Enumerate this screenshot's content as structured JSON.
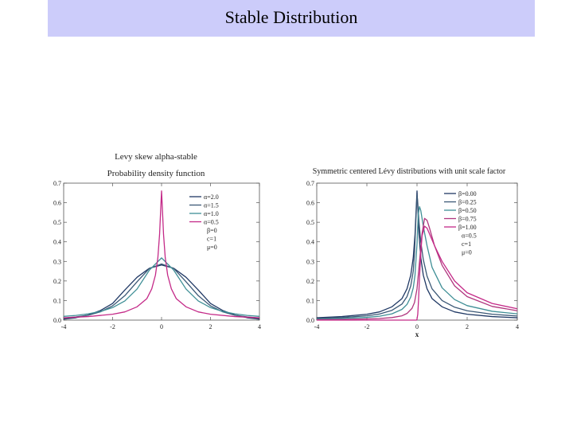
{
  "page": {
    "title": "Stable Distribution"
  },
  "colors": {
    "title_bar": "#ccccfa",
    "dark_blue": "#1f3864",
    "slate": "#3b5876",
    "teal": "#3f8f96",
    "magenta": "#c42a88"
  },
  "chart_data": [
    {
      "type": "line",
      "title": "Levy skew alpha-stable",
      "subtitle": "Probability density function",
      "xlabel": "",
      "ylabel": "",
      "xlim": [
        -4,
        4
      ],
      "ylim": [
        0,
        0.7
      ],
      "xticks": [
        "-4",
        "-2",
        "0",
        "2",
        "4"
      ],
      "yticks": [
        "0.0",
        "0.1",
        "0.2",
        "0.3",
        "0.4",
        "0.5",
        "0.6",
        "0.7"
      ],
      "legend_position": "top-right",
      "legend": [
        "α=2.0",
        "α=1.5",
        "α=1.0",
        "α=0.5"
      ],
      "params": [
        "β=0",
        "c=1",
        "μ=0"
      ],
      "series": [
        {
          "name": "α=2.0",
          "color": "#1f3864",
          "x": [
            -4,
            -3.5,
            -3,
            -2.5,
            -2,
            -1.5,
            -1,
            -0.5,
            0,
            0.5,
            1,
            1.5,
            2,
            2.5,
            3,
            3.5,
            4
          ],
          "y": [
            0.005,
            0.012,
            0.026,
            0.049,
            0.085,
            0.154,
            0.219,
            0.265,
            0.282,
            0.265,
            0.219,
            0.154,
            0.085,
            0.049,
            0.026,
            0.012,
            0.005
          ]
        },
        {
          "name": "α=1.5",
          "color": "#3b5876",
          "x": [
            -4,
            -3.5,
            -3,
            -2.5,
            -2,
            -1.5,
            -1,
            -0.5,
            0,
            0.5,
            1,
            1.5,
            2,
            2.5,
            3,
            3.5,
            4
          ],
          "y": [
            0.01,
            0.016,
            0.025,
            0.042,
            0.073,
            0.125,
            0.196,
            0.264,
            0.287,
            0.264,
            0.196,
            0.125,
            0.073,
            0.042,
            0.025,
            0.016,
            0.01
          ]
        },
        {
          "name": "α=1.0",
          "color": "#3f8f96",
          "x": [
            -4,
            -3.5,
            -3,
            -2.5,
            -2,
            -1.5,
            -1,
            -0.5,
            0,
            0.5,
            1,
            1.5,
            2,
            2.5,
            3,
            3.5,
            4
          ],
          "y": [
            0.019,
            0.024,
            0.032,
            0.044,
            0.064,
            0.098,
            0.159,
            0.255,
            0.318,
            0.255,
            0.159,
            0.098,
            0.064,
            0.044,
            0.032,
            0.024,
            0.019
          ]
        },
        {
          "name": "α=0.5",
          "color": "#c42a88",
          "x": [
            -4,
            -3,
            -2,
            -1.5,
            -1,
            -0.6,
            -0.4,
            -0.25,
            -0.15,
            -0.08,
            -0.03,
            0,
            0.03,
            0.08,
            0.15,
            0.25,
            0.4,
            0.6,
            1,
            1.5,
            2,
            3,
            4
          ],
          "y": [
            0.012,
            0.018,
            0.03,
            0.042,
            0.068,
            0.11,
            0.16,
            0.23,
            0.32,
            0.44,
            0.58,
            0.66,
            0.58,
            0.44,
            0.32,
            0.23,
            0.16,
            0.11,
            0.068,
            0.042,
            0.03,
            0.018,
            0.012
          ]
        }
      ]
    },
    {
      "type": "line",
      "title": "Symmetric centered Lévy distributions with unit scale factor",
      "subtitle": "",
      "xlabel": "x",
      "ylabel": "",
      "xlim": [
        -4,
        4
      ],
      "ylim": [
        0,
        0.7
      ],
      "xticks": [
        "-4",
        "-2",
        "0",
        "2",
        "4"
      ],
      "yticks": [
        "0.0",
        "0.1",
        "0.2",
        "0.3",
        "0.4",
        "0.5",
        "0.6",
        "0.7"
      ],
      "legend_position": "top-right",
      "legend": [
        "β=0.00",
        "β=0.25",
        "β=0.50",
        "β=0.75",
        "β=1.00"
      ],
      "params": [
        "α=0.5",
        "c=1",
        "μ=0"
      ],
      "series": [
        {
          "name": "β=0.00",
          "color": "#1f3864",
          "x": [
            -4,
            -3,
            -2,
            -1.5,
            -1,
            -0.6,
            -0.4,
            -0.25,
            -0.15,
            -0.08,
            -0.03,
            0,
            0.03,
            0.08,
            0.15,
            0.25,
            0.4,
            0.6,
            1,
            1.5,
            2,
            3,
            4
          ],
          "y": [
            0.012,
            0.018,
            0.03,
            0.042,
            0.068,
            0.11,
            0.16,
            0.23,
            0.32,
            0.44,
            0.58,
            0.66,
            0.58,
            0.44,
            0.32,
            0.23,
            0.16,
            0.11,
            0.068,
            0.042,
            0.03,
            0.018,
            0.012
          ]
        },
        {
          "name": "β=0.25",
          "color": "#3b5876",
          "x": [
            -4,
            -3,
            -2,
            -1.5,
            -1,
            -0.6,
            -0.4,
            -0.25,
            -0.15,
            -0.1,
            -0.05,
            0,
            0.03,
            0.08,
            0.15,
            0.25,
            0.4,
            0.6,
            1,
            1.5,
            2,
            3,
            4
          ],
          "y": [
            0.008,
            0.013,
            0.022,
            0.031,
            0.05,
            0.082,
            0.12,
            0.175,
            0.25,
            0.34,
            0.5,
            0.64,
            0.6,
            0.5,
            0.4,
            0.31,
            0.225,
            0.16,
            0.1,
            0.066,
            0.048,
            0.03,
            0.021
          ]
        },
        {
          "name": "β=0.50",
          "color": "#3f8f96",
          "x": [
            -4,
            -3,
            -2,
            -1.5,
            -1,
            -0.6,
            -0.4,
            -0.25,
            -0.15,
            -0.08,
            0,
            0.05,
            0.1,
            0.15,
            0.25,
            0.4,
            0.6,
            1,
            1.5,
            2,
            3,
            4
          ],
          "y": [
            0.005,
            0.008,
            0.014,
            0.02,
            0.032,
            0.055,
            0.08,
            0.118,
            0.165,
            0.23,
            0.39,
            0.54,
            0.58,
            0.56,
            0.48,
            0.38,
            0.27,
            0.165,
            0.105,
            0.074,
            0.045,
            0.032
          ]
        },
        {
          "name": "β=0.75",
          "color": "#b0367e",
          "x": [
            -4,
            -3,
            -2,
            -1.5,
            -1,
            -0.6,
            -0.4,
            -0.2,
            -0.1,
            0,
            0.1,
            0.2,
            0.3,
            0.4,
            0.5,
            0.7,
            1,
            1.5,
            2,
            3,
            4
          ],
          "y": [
            0.002,
            0.003,
            0.006,
            0.008,
            0.013,
            0.022,
            0.034,
            0.06,
            0.09,
            0.16,
            0.3,
            0.44,
            0.52,
            0.51,
            0.47,
            0.38,
            0.28,
            0.175,
            0.12,
            0.07,
            0.048
          ]
        },
        {
          "name": "β=1.00",
          "color": "#c42a88",
          "x": [
            -4,
            -0.02,
            0,
            0.03,
            0.06,
            0.1,
            0.15,
            0.2,
            0.3,
            0.4,
            0.5,
            0.7,
            1,
            1.5,
            2,
            3,
            4
          ],
          "y": [
            0,
            0,
            0.005,
            0.03,
            0.1,
            0.22,
            0.34,
            0.43,
            0.48,
            0.47,
            0.44,
            0.38,
            0.3,
            0.2,
            0.14,
            0.085,
            0.058
          ]
        }
      ]
    }
  ]
}
